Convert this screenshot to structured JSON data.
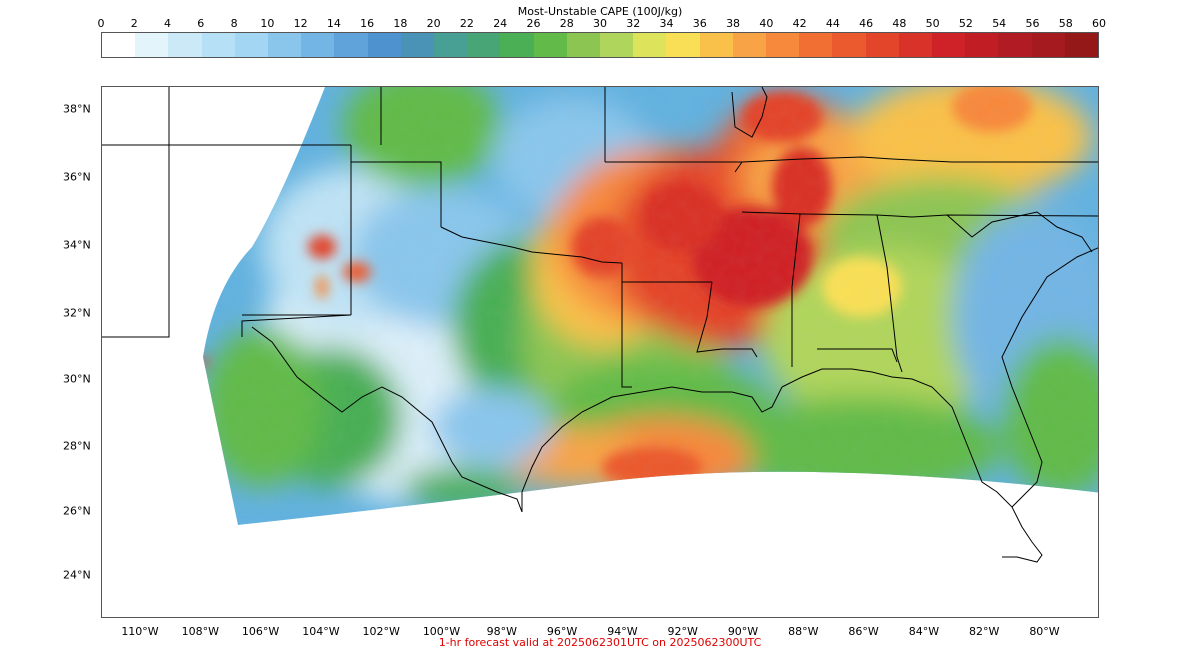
{
  "colorbar": {
    "title": "Most-Unstable CAPE (100J/kg)",
    "ticks": [
      "0",
      "2",
      "4",
      "6",
      "8",
      "10",
      "12",
      "14",
      "16",
      "18",
      "20",
      "22",
      "24",
      "26",
      "28",
      "30",
      "32",
      "34",
      "36",
      "38",
      "40",
      "42",
      "44",
      "46",
      "48",
      "50",
      "52",
      "54",
      "56",
      "58",
      "60"
    ],
    "colors": [
      "#ffffff",
      "#e3f4fb",
      "#cbe9f7",
      "#b6e0f6",
      "#a2d6f3",
      "#8ac6ec",
      "#73b5e4",
      "#5fa3da",
      "#4e93d0",
      "#4a92b6",
      "#48a094",
      "#47a576",
      "#4aaf55",
      "#62bb49",
      "#8dc552",
      "#b0d55c",
      "#dde35a",
      "#f9df56",
      "#f9c14a",
      "#f8a446",
      "#f7893d",
      "#f16f32",
      "#eb5a2e",
      "#e3452b",
      "#d93228",
      "#cf2128",
      "#c11d25",
      "#b11b23",
      "#a51a1f",
      "#951818"
    ]
  },
  "map": {
    "lat_labels": [
      "38°N",
      "36°N",
      "34°N",
      "32°N",
      "30°N",
      "28°N",
      "26°N",
      "24°N"
    ],
    "lon_labels": [
      "110°W",
      "108°W",
      "106°W",
      "104°W",
      "102°W",
      "100°W",
      "98°W",
      "96°W",
      "94°W",
      "92°W",
      "90°W",
      "88°W",
      "86°W",
      "84°W",
      "82°W",
      "80°W"
    ]
  },
  "footer": "1-hr forecast valid at 2025062301UTC on 2025062300UTC"
}
